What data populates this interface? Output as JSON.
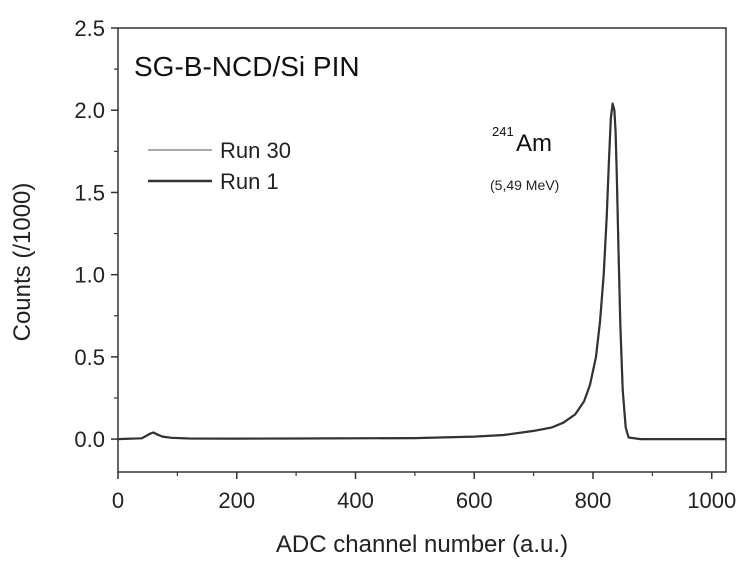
{
  "chart_data": {
    "type": "line",
    "title": "SG-B-NCD/Si PIN",
    "xlabel": "ADC channel number (a.u.)",
    "ylabel": "Counts (/1000)",
    "xlim": [
      0,
      1024
    ],
    "ylim": [
      -0.2,
      2.5
    ],
    "xticks": [
      0,
      200,
      400,
      600,
      800,
      1000
    ],
    "xtick_labels": [
      "0",
      "200",
      "400",
      "600",
      "800",
      "1000"
    ],
    "yticks": [
      0.0,
      0.5,
      1.0,
      1.5,
      2.0,
      2.5
    ],
    "ytick_labels": [
      "0.0",
      "0.5",
      "1.0",
      "1.5",
      "2.0",
      "2.5"
    ],
    "grid": false,
    "legend_position": "top-left",
    "annotations": {
      "peak_isotope_mass": "241",
      "peak_isotope_symbol": "Am",
      "peak_energy": "(5,49 MeV)"
    },
    "series": [
      {
        "name": "Run 30",
        "color": "#aaaaaa",
        "x": [
          0,
          40,
          55,
          60,
          65,
          75,
          90,
          120,
          200,
          300,
          400,
          500,
          600,
          650,
          700,
          730,
          750,
          770,
          785,
          795,
          805,
          812,
          818,
          823,
          827,
          830,
          833,
          836,
          838,
          840,
          843,
          846,
          850,
          855,
          860,
          880,
          1024
        ],
        "y": [
          0.0,
          0.005,
          0.035,
          0.04,
          0.03,
          0.015,
          0.008,
          0.004,
          0.003,
          0.004,
          0.005,
          0.006,
          0.015,
          0.025,
          0.05,
          0.07,
          0.1,
          0.15,
          0.23,
          0.33,
          0.5,
          0.72,
          1.0,
          1.35,
          1.7,
          1.93,
          2.03,
          1.99,
          1.85,
          1.6,
          1.15,
          0.7,
          0.3,
          0.07,
          0.01,
          0.0,
          0.0
        ]
      },
      {
        "name": "Run 1",
        "color": "#333333",
        "x": [
          0,
          40,
          55,
          60,
          65,
          75,
          90,
          120,
          200,
          300,
          400,
          500,
          600,
          650,
          700,
          730,
          750,
          770,
          785,
          795,
          805,
          812,
          818,
          823,
          827,
          830,
          833,
          836,
          838,
          840,
          843,
          846,
          850,
          855,
          860,
          880,
          1024
        ],
        "y": [
          0.0,
          0.005,
          0.035,
          0.04,
          0.03,
          0.015,
          0.008,
          0.004,
          0.003,
          0.004,
          0.005,
          0.006,
          0.015,
          0.025,
          0.05,
          0.07,
          0.1,
          0.15,
          0.23,
          0.33,
          0.5,
          0.72,
          1.0,
          1.35,
          1.7,
          1.95,
          2.04,
          2.0,
          1.87,
          1.6,
          1.15,
          0.7,
          0.3,
          0.07,
          0.01,
          0.0,
          0.0
        ]
      }
    ]
  }
}
